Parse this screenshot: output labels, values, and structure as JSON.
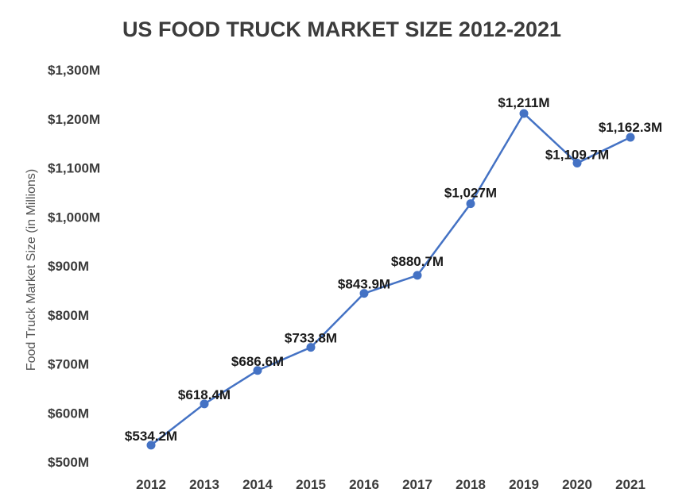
{
  "chart_data": {
    "type": "line",
    "title": "US FOOD TRUCK MARKET SIZE 2012-2021",
    "ylabel": "Food Truck Market Size (in Millions)",
    "xlabel": "",
    "categories": [
      "2012",
      "2013",
      "2014",
      "2015",
      "2016",
      "2017",
      "2018",
      "2019",
      "2020",
      "2021"
    ],
    "values": [
      534.2,
      618.4,
      686.6,
      733.8,
      843.9,
      880.7,
      1027,
      1211,
      1109.7,
      1162.3
    ],
    "data_labels": [
      "$534.2M",
      "$618.4M",
      "$686.6M",
      "$733.8M",
      "$843.9M",
      "$880.7M",
      "$1,027M",
      "$1,211M",
      "$1,109.7M",
      "$1,162.3M"
    ],
    "yticks": [
      500,
      600,
      700,
      800,
      900,
      1000,
      1100,
      1200,
      1300
    ],
    "ytick_labels": [
      "$500M",
      "$600M",
      "$700M",
      "$800M",
      "$900M",
      "$1,000M",
      "$1,100M",
      "$1,200M",
      "$1,300M"
    ],
    "ylim": [
      500,
      1300
    ],
    "grid": false,
    "line_color": "#4472c4"
  }
}
